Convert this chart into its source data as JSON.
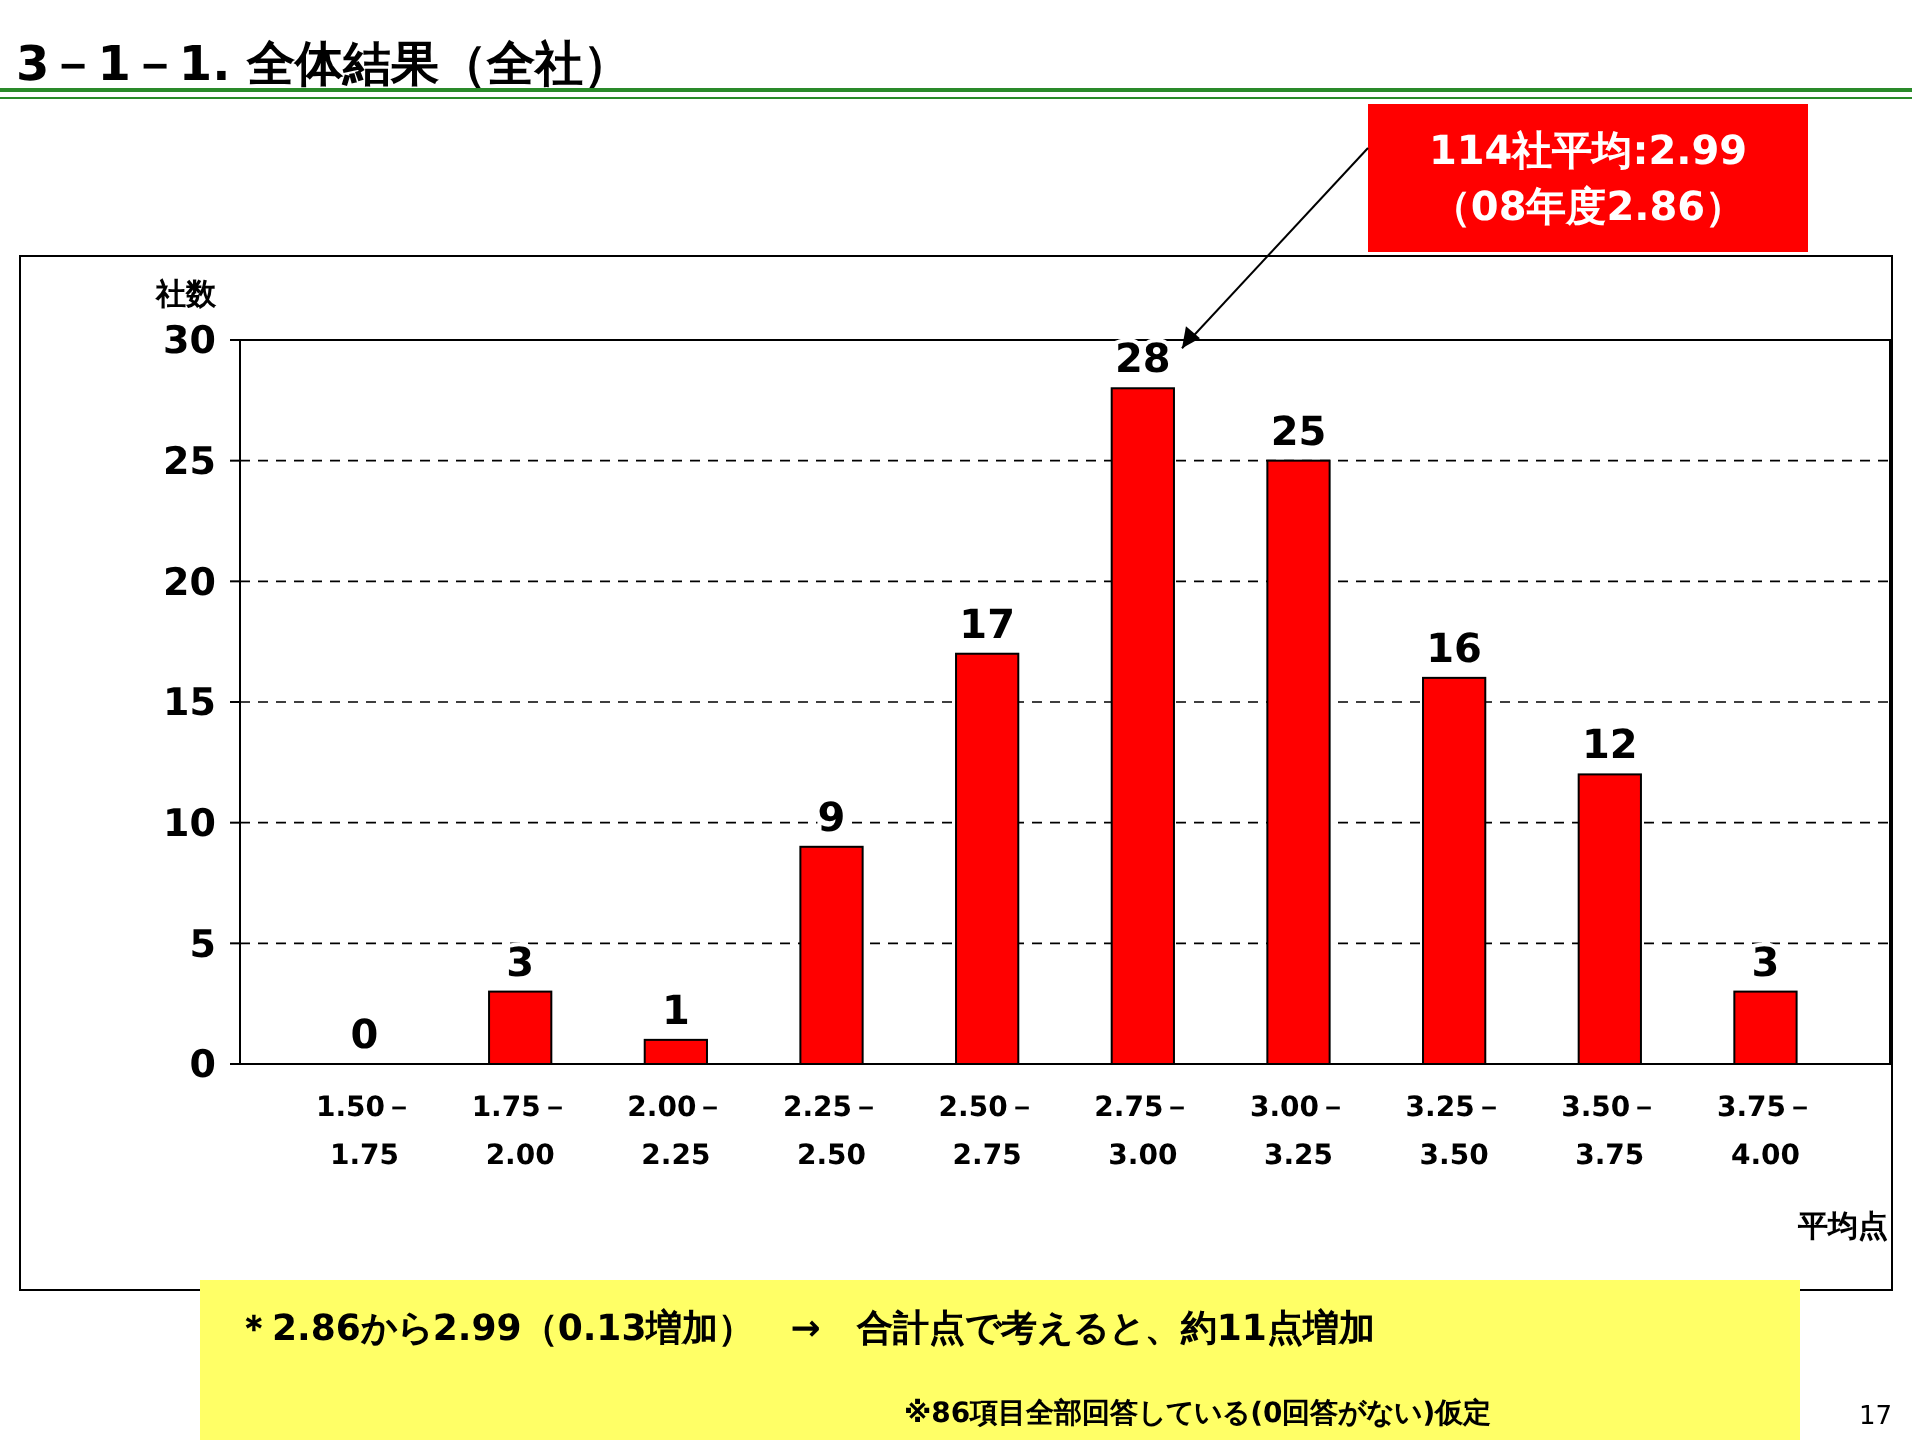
{
  "chart_data": {
    "type": "bar",
    "title": "3－1－1. 全体結果（全社）",
    "ylabel": "社数",
    "xlabel": "平均点",
    "categories": [
      "1.50－\n1.75",
      "1.75－\n2.00",
      "2.00－\n2.25",
      "2.25－\n2.50",
      "2.50－\n2.75",
      "2.75－\n3.00",
      "3.00－\n3.25",
      "3.25－\n3.50",
      "3.50－\n3.75",
      "3.75－\n4.00"
    ],
    "values": [
      0,
      3,
      1,
      9,
      17,
      28,
      25,
      16,
      12,
      3
    ],
    "color": "#ff0000",
    "ylim": [
      0,
      30
    ],
    "yticks": [
      0,
      5,
      10,
      15,
      20,
      25,
      30
    ],
    "grid": "y",
    "data_labels": true,
    "annotations": [
      "114社平均:2.99\n（08年度2.86）",
      "＊2.86から2.99（0.13増加）　→　合計点で考えると、約11点増加",
      "※86項目全部回答している(0回答がない)仮定",
      "17"
    ]
  }
}
